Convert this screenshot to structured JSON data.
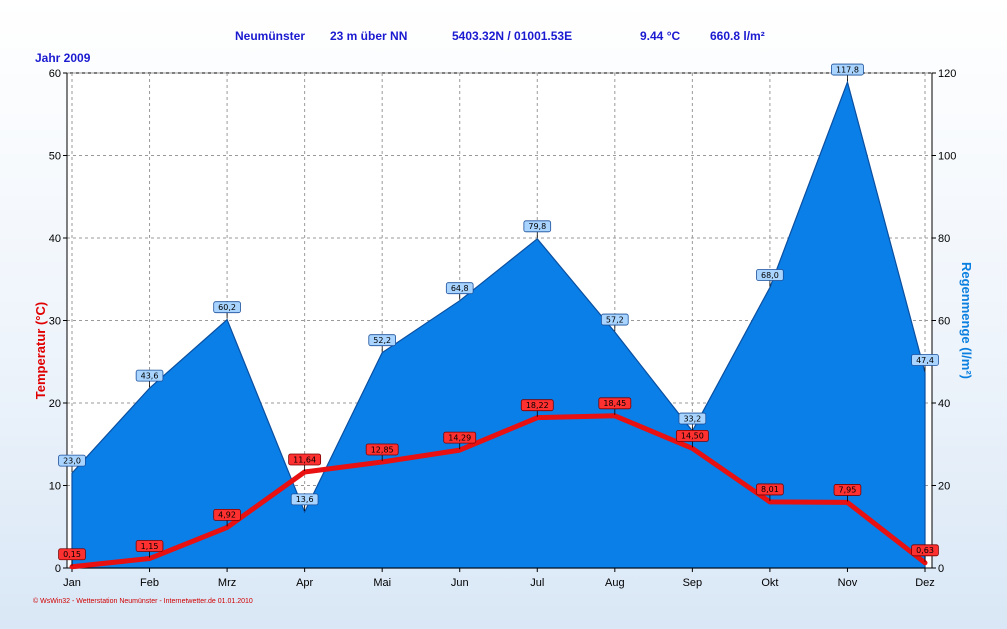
{
  "header": {
    "station": "Neumünster",
    "elevation": "23 m über NN",
    "coords": "5403.32N / 01001.53E",
    "avg_temp": "9.44 °C",
    "total_rain": "660.8 l/m²"
  },
  "year_label": "Jahr  2009",
  "footer": "© WsWin32 - Wetterstation Neumünster - Internetwetter.de  01.01.2010",
  "colors": {
    "temperature": "#e81010",
    "rain": "#0a7fe8",
    "rain_edge": "#0a4fa0"
  },
  "chart_data": {
    "type": "line+area",
    "categories": [
      "Jan",
      "Feb",
      "Mrz",
      "Apr",
      "Mai",
      "Jun",
      "Jul",
      "Aug",
      "Sep",
      "Okt",
      "Nov",
      "Dez"
    ],
    "series": [
      {
        "name": "Temperatur (°C)",
        "axis": "left",
        "values": [
          0.15,
          1.15,
          4.92,
          11.64,
          12.85,
          14.29,
          18.22,
          18.45,
          14.5,
          8.01,
          7.95,
          0.63
        ],
        "labels": [
          "0,15",
          "1,15",
          "4,92",
          "11,64",
          "12,85",
          "14,29",
          "18,22",
          "18,45",
          "14,50",
          "8,01",
          "7,95",
          "0,63"
        ]
      },
      {
        "name": "Regenmenge (l/m²)",
        "axis": "right",
        "values": [
          23.0,
          43.6,
          60.2,
          13.6,
          52.2,
          64.8,
          79.8,
          57.2,
          33.2,
          68.0,
          117.8,
          47.4
        ],
        "labels": [
          "23,0",
          "43,6",
          "60,2",
          "13,6",
          "52,2",
          "64,8",
          "79,8",
          "57,2",
          "33,2",
          "68,0",
          "117,8",
          "47,4"
        ]
      }
    ],
    "ylabel_left": "Temperatur  (°C)",
    "ylabel_right": "Regenmenge  (l/m²)",
    "ylim_left": [
      0,
      60
    ],
    "ylim_right": [
      0,
      120
    ],
    "yticks_left": [
      "0",
      "10",
      "20",
      "30",
      "40",
      "50",
      "60"
    ],
    "yticks_right": [
      "0",
      "20",
      "40",
      "60",
      "80",
      "100",
      "120"
    ],
    "grid": true
  }
}
